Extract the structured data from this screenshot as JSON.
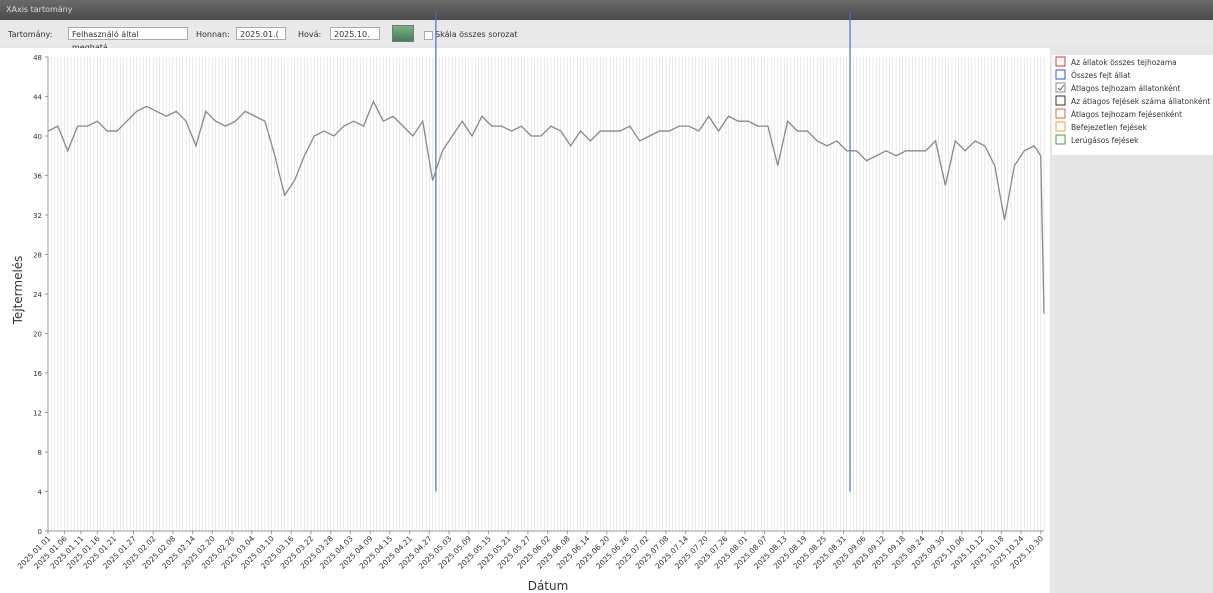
{
  "window": {
    "title": "XAxis tartomány"
  },
  "toolbar": {
    "range_label": "Tartomány:",
    "range_value": "Felhasználó által meghatá...",
    "from_label": "Honnan:",
    "from_value": "2025.01.(",
    "to_label": "Hová:",
    "to_value": "2025.10.",
    "scale_all_label": "Skála összes sorozat",
    "scale_all_checked": false
  },
  "chart_data": {
    "type": "line",
    "y_label": "Tejtermelés",
    "x_label": "Dátum",
    "xlim": [
      "2025.01.01",
      "2025.10.31"
    ],
    "xticks": [
      "2025.01.01",
      "2025.01.06",
      "2025.01.11",
      "2025.01.16",
      "2025.01.21",
      "2025.01.27",
      "2025.02.02",
      "2025.02.08",
      "2025.02.14",
      "2025.02.20",
      "2025.02.26",
      "2025.03.04",
      "2025.03.10",
      "2025.03.16",
      "2025.03.22",
      "2025.03.28",
      "2025.04.03",
      "2025.04.09",
      "2025.04.15",
      "2025.04.21",
      "2025.04.27",
      "2025.05.03",
      "2025.05.09",
      "2025.05.15",
      "2025.05.21",
      "2025.05.27",
      "2025.06.02",
      "2025.06.08",
      "2025.06.14",
      "2025.06.20",
      "2025.06.26",
      "2025.07.02",
      "2025.07.08",
      "2025.07.14",
      "2025.07.20",
      "2025.07.26",
      "2025.08.01",
      "2025.08.07",
      "2025.08.13",
      "2025.08.19",
      "2025.08.25",
      "2025.08.31",
      "2025.09.06",
      "2025.09.12",
      "2025.09.18",
      "2025.09.24",
      "2025.09.30",
      "2025.10.06",
      "2025.10.12",
      "2025.10.18",
      "2025.10.24",
      "2025.10.30"
    ],
    "ylim": [
      0,
      48
    ],
    "yticks": [
      0,
      4,
      8,
      12,
      16,
      20,
      24,
      28,
      32,
      36,
      40,
      44,
      48
    ],
    "x_minor_grid": "day",
    "x": [
      "2025.01.01",
      "2025.01.04",
      "2025.01.07",
      "2025.01.10",
      "2025.01.13",
      "2025.01.16",
      "2025.01.19",
      "2025.01.22",
      "2025.01.25",
      "2025.01.28",
      "2025.01.31",
      "2025.02.03",
      "2025.02.06",
      "2025.02.09",
      "2025.02.12",
      "2025.02.15",
      "2025.02.18",
      "2025.02.21",
      "2025.02.24",
      "2025.02.27",
      "2025.03.02",
      "2025.03.05",
      "2025.03.08",
      "2025.03.11",
      "2025.03.14",
      "2025.03.17",
      "2025.03.20",
      "2025.03.23",
      "2025.03.26",
      "2025.03.29",
      "2025.04.01",
      "2025.04.04",
      "2025.04.07",
      "2025.04.10",
      "2025.04.13",
      "2025.04.16",
      "2025.04.19",
      "2025.04.22",
      "2025.04.25",
      "2025.04.28",
      "2025.05.01",
      "2025.05.04",
      "2025.05.07",
      "2025.05.10",
      "2025.05.13",
      "2025.05.16",
      "2025.05.19",
      "2025.05.22",
      "2025.05.25",
      "2025.05.28",
      "2025.05.31",
      "2025.06.03",
      "2025.06.06",
      "2025.06.09",
      "2025.06.12",
      "2025.06.15",
      "2025.06.18",
      "2025.06.21",
      "2025.06.24",
      "2025.06.27",
      "2025.06.30",
      "2025.07.03",
      "2025.07.06",
      "2025.07.09",
      "2025.07.12",
      "2025.07.15",
      "2025.07.18",
      "2025.07.21",
      "2025.07.24",
      "2025.07.27",
      "2025.07.30",
      "2025.08.02",
      "2025.08.05",
      "2025.08.08",
      "2025.08.11",
      "2025.08.14",
      "2025.08.17",
      "2025.08.20",
      "2025.08.23",
      "2025.08.26",
      "2025.08.29",
      "2025.09.01",
      "2025.09.04",
      "2025.09.07",
      "2025.09.10",
      "2025.09.13",
      "2025.09.16",
      "2025.09.19",
      "2025.09.22",
      "2025.09.25",
      "2025.09.28",
      "2025.10.01",
      "2025.10.04",
      "2025.10.07",
      "2025.10.10",
      "2025.10.13",
      "2025.10.16",
      "2025.10.19",
      "2025.10.22",
      "2025.10.25",
      "2025.10.28",
      "2025.10.30",
      "2025.10.31"
    ],
    "series": [
      {
        "name": "Az állatok összes tejhozama",
        "color": "#e03030",
        "checked": false
      },
      {
        "name": "Összes fejt állat",
        "color": "#3050d0",
        "checked": false
      },
      {
        "name": "Átlagos tejhozam állatonként",
        "color": "#888888",
        "checked": true,
        "values": [
          40.5,
          41,
          38.5,
          41,
          41,
          41.5,
          40.5,
          40.5,
          41.5,
          42.5,
          43,
          42.5,
          42,
          42.5,
          41.5,
          39,
          42.5,
          41.5,
          41,
          41.5,
          42.5,
          42,
          41.5,
          38,
          34,
          35.5,
          38,
          40,
          40.5,
          40,
          41,
          41.5,
          41,
          43.5,
          41.5,
          42,
          41,
          40,
          41.5,
          35.5,
          38.5,
          40,
          41.5,
          40,
          42,
          41,
          41,
          40.5,
          41,
          40,
          40,
          41,
          40.5,
          39,
          40.5,
          39.5,
          40.5,
          40.5,
          40.5,
          41,
          39.5,
          40,
          40.5,
          40.5,
          41,
          41,
          40.5,
          42,
          40.5,
          42,
          41.5,
          41.5,
          41,
          41,
          37,
          41.5,
          40.5,
          40.5,
          39.5,
          39,
          39.5,
          38.5,
          38.5,
          37.5,
          38,
          38.5,
          38,
          38.5,
          38.5,
          38.5,
          39.5,
          35,
          39.5,
          38.5,
          39.5,
          39,
          37,
          31.5,
          37,
          38.5,
          39,
          38,
          22
        ]
      },
      {
        "name": "Az átlagos fejések száma állatonként",
        "color": "#303030",
        "checked": false
      },
      {
        "name": "Átlagos tejhozam fejésenként",
        "color": "#e06040",
        "checked": false
      },
      {
        "name": "Befejezetlen fejések",
        "color": "#f0a040",
        "checked": false
      },
      {
        "name": "Lerúgásos fejések",
        "color": "#40a040",
        "checked": false
      }
    ],
    "vlines": {
      "color": "#4a6ec0",
      "from": 4,
      "x": [
        "2025.04.29",
        "2025.09.02"
      ]
    }
  }
}
